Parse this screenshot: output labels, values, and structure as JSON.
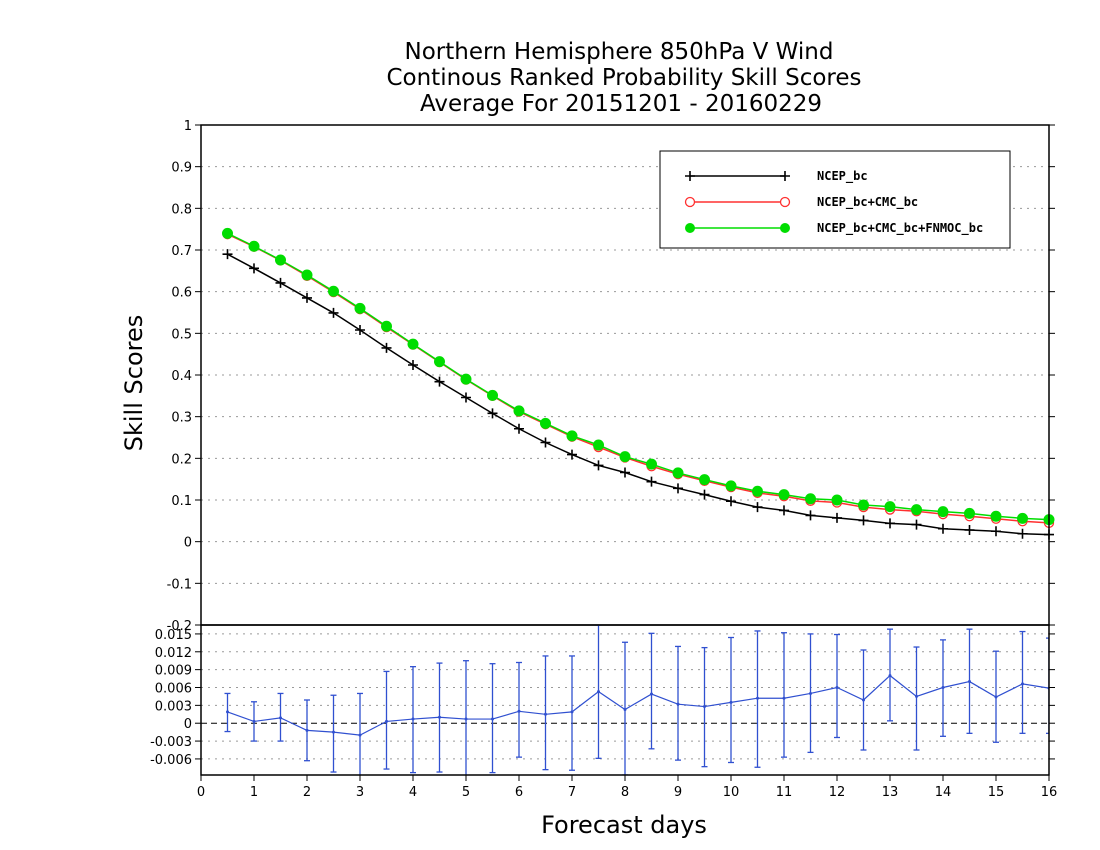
{
  "colors": {
    "ncep": "#000000",
    "ncep_cmc": "#ff3030",
    "ncep_cmc_fnmoc": "#00dd00",
    "diff": "#3050d0"
  },
  "chart_data": [
    {
      "type": "line",
      "title": [
        "Northern Hemisphere 850hPa V Wind",
        "Continous Ranked Probability Skill Scores",
        "Average For 20151201 - 20160229"
      ],
      "ylabel": "Skill Scores",
      "xlabel": "",
      "xlim": [
        0,
        16
      ],
      "ylim": [
        -0.2,
        1
      ],
      "yticks": [
        -0.2,
        -0.1,
        0,
        0.1,
        0.2,
        0.3,
        0.4,
        0.5,
        0.6,
        0.7,
        0.8,
        0.9,
        1
      ],
      "ytick_labels": [
        "-0.2",
        "-0.1",
        "0",
        "0.1",
        "0.2",
        "0.3",
        "0.4",
        "0.5",
        "0.6",
        "0.7",
        "0.8",
        "0.9",
        "1"
      ],
      "grid": true,
      "legend_position": "top-right",
      "x": [
        0.5,
        1,
        1.5,
        2,
        2.5,
        3,
        3.5,
        4,
        4.5,
        5,
        5.5,
        6,
        6.5,
        7,
        7.5,
        8,
        8.5,
        9,
        9.5,
        10,
        10.5,
        11,
        11.5,
        12,
        12.5,
        13,
        13.5,
        14,
        14.5,
        15,
        15.5,
        16
      ],
      "series": [
        {
          "name": "NCEP_bc",
          "marker": "plus",
          "values": [
            0.69,
            0.656,
            0.621,
            0.585,
            0.549,
            0.508,
            0.465,
            0.424,
            0.384,
            0.346,
            0.308,
            0.271,
            0.238,
            0.209,
            0.183,
            0.166,
            0.144,
            0.128,
            0.113,
            0.097,
            0.083,
            0.075,
            0.063,
            0.057,
            0.051,
            0.044,
            0.041,
            0.031,
            0.028,
            0.025,
            0.019,
            0.017
          ]
        },
        {
          "name": "NCEP_bc+CMC_bc",
          "marker": "open-circle",
          "values": [
            0.738,
            0.708,
            0.675,
            0.638,
            0.599,
            0.558,
            0.515,
            0.473,
            0.431,
            0.389,
            0.35,
            0.312,
            0.282,
            0.252,
            0.227,
            0.202,
            0.181,
            0.162,
            0.146,
            0.131,
            0.117,
            0.109,
            0.098,
            0.094,
            0.083,
            0.077,
            0.073,
            0.066,
            0.061,
            0.055,
            0.049,
            0.045
          ]
        },
        {
          "name": "NCEP_bc+CMC_bc+FNMOC_bc",
          "marker": "filled-circle",
          "values": [
            0.74,
            0.709,
            0.676,
            0.64,
            0.601,
            0.56,
            0.517,
            0.474,
            0.432,
            0.39,
            0.351,
            0.314,
            0.284,
            0.254,
            0.232,
            0.204,
            0.186,
            0.165,
            0.149,
            0.134,
            0.121,
            0.113,
            0.103,
            0.1,
            0.088,
            0.084,
            0.077,
            0.072,
            0.068,
            0.061,
            0.056,
            0.053
          ]
        }
      ]
    },
    {
      "type": "line",
      "title": "",
      "xlabel": "Forecast days",
      "xlim": [
        0,
        16
      ],
      "ylim": [
        -0.0087,
        0.0165
      ],
      "xticks": [
        0,
        1,
        2,
        3,
        4,
        5,
        6,
        7,
        8,
        9,
        10,
        11,
        12,
        13,
        14,
        15,
        16
      ],
      "xtick_labels": [
        "0",
        "1",
        "2",
        "3",
        "4",
        "5",
        "6",
        "7",
        "8",
        "9",
        "10",
        "11",
        "12",
        "13",
        "14",
        "15",
        "16"
      ],
      "yticks": [
        -0.006,
        -0.003,
        0,
        0.003,
        0.006,
        0.009,
        0.012,
        0.015
      ],
      "ytick_labels": [
        "-0.006",
        "-0.003",
        "0",
        "0.003",
        "0.006",
        "0.009",
        "0.012",
        "0.015"
      ],
      "grid": true,
      "zero_line": true,
      "x": [
        0.5,
        1,
        1.5,
        2,
        2.5,
        3,
        3.5,
        4,
        4.5,
        5,
        5.5,
        6,
        6.5,
        7,
        7.5,
        8,
        8.5,
        9,
        9.5,
        10,
        10.5,
        11,
        11.5,
        12,
        12.5,
        13,
        13.5,
        14,
        14.5,
        15,
        15.5,
        16
      ],
      "series": [
        {
          "values": [
            0.0019,
            0.0003,
            0.0009,
            -0.0012,
            -0.0015,
            -0.002,
            0.0003,
            0.0007,
            0.001,
            0.0007,
            0.0007,
            0.002,
            0.0015,
            0.0019,
            0.0053,
            0.0023,
            0.0049,
            0.0032,
            0.0028,
            0.0035,
            0.0042,
            0.0042,
            0.005,
            0.006,
            0.0039,
            0.008,
            0.0045,
            0.006,
            0.007,
            0.0044,
            0.0066,
            0.0059
          ],
          "lower": [
            -0.0014,
            -0.003,
            -0.003,
            -0.0063,
            -0.0082,
            -0.0089,
            -0.0077,
            -0.0083,
            -0.0082,
            -0.009,
            -0.0083,
            -0.0057,
            -0.0078,
            -0.0079,
            -0.0059,
            -0.0087,
            -0.0043,
            -0.0062,
            -0.0073,
            -0.0066,
            -0.0074,
            -0.0057,
            -0.0049,
            -0.0024,
            -0.0045,
            0.0004,
            -0.0045,
            -0.0022,
            -0.0017,
            -0.0032,
            -0.0017,
            -0.0017
          ],
          "upper": [
            0.005,
            0.0036,
            0.005,
            0.0039,
            0.0047,
            0.005,
            0.0087,
            0.0095,
            0.0101,
            0.0105,
            0.01,
            0.0102,
            0.0113,
            0.0113,
            0.0165,
            0.0136,
            0.0151,
            0.0129,
            0.0127,
            0.0144,
            0.0155,
            0.0152,
            0.015,
            0.0149,
            0.0123,
            0.0158,
            0.0128,
            0.014,
            0.0158,
            0.0121,
            0.0154,
            0.0143
          ]
        }
      ]
    }
  ]
}
